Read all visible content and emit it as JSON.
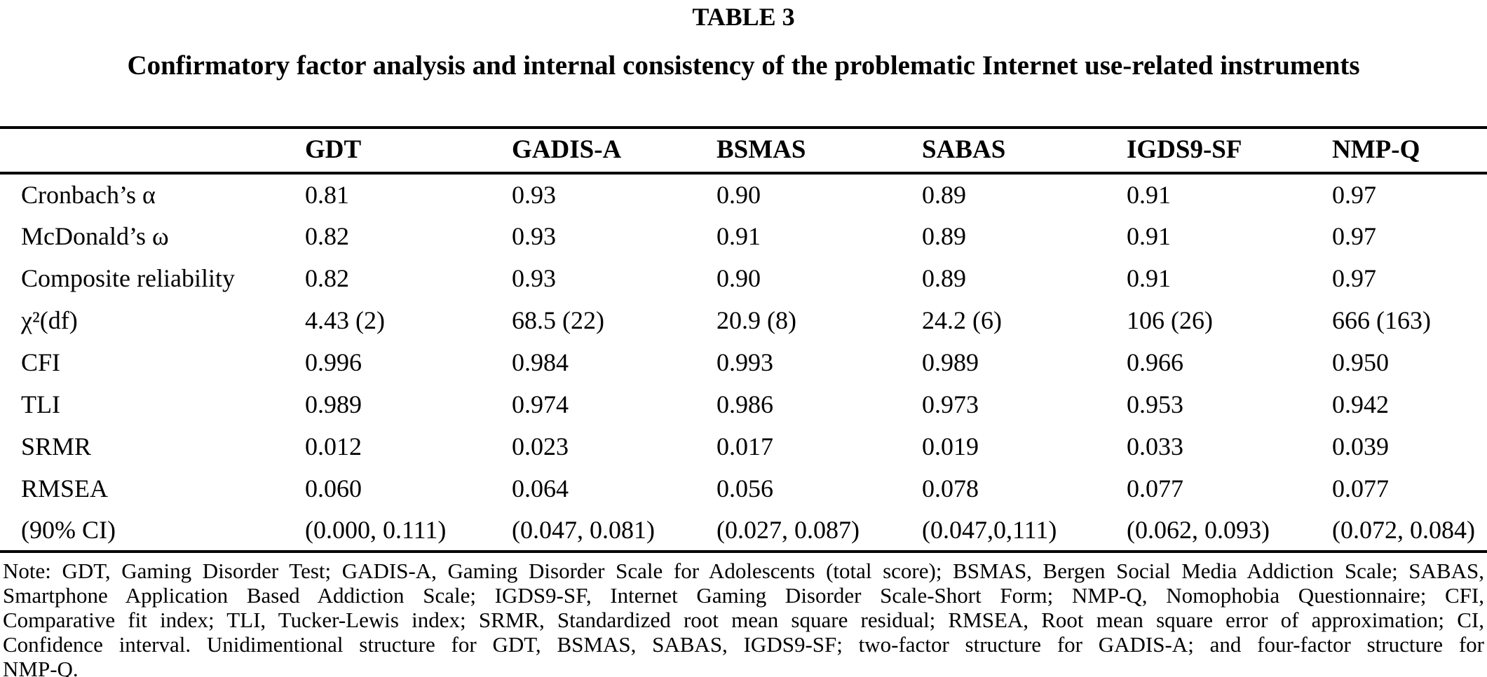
{
  "colors": {
    "text": "#000000",
    "background": "#ffffff",
    "rule": "#000000"
  },
  "table": {
    "number_label": "TABLE 3",
    "title": "Confirmatory factor analysis and internal consistency of the problematic Internet use-related instruments",
    "columns": [
      "GDT",
      "GADIS-A",
      "BSMAS",
      "SABAS",
      "IGDS9-SF",
      "NMP-Q"
    ],
    "rows": [
      {
        "label": "Cronbach’s α",
        "values": [
          "0.81",
          "0.93",
          "0.90",
          "0.89",
          "0.91",
          "0.97"
        ]
      },
      {
        "label": "McDonald’s ω",
        "values": [
          "0.82",
          "0.93",
          "0.91",
          "0.89",
          "0.91",
          "0.97"
        ]
      },
      {
        "label": "Composite reliability",
        "values": [
          "0.82",
          "0.93",
          "0.90",
          "0.89",
          "0.91",
          "0.97"
        ]
      },
      {
        "label": "χ²(df)",
        "values": [
          "4.43 (2)",
          "68.5 (22)",
          "20.9 (8)",
          "24.2 (6)",
          "106 (26)",
          "666 (163)"
        ]
      },
      {
        "label": "CFI",
        "values": [
          "0.996",
          "0.984",
          "0.993",
          "0.989",
          "0.966",
          "0.950"
        ]
      },
      {
        "label": "TLI",
        "values": [
          "0.989",
          "0.974",
          "0.986",
          "0.973",
          "0.953",
          "0.942"
        ]
      },
      {
        "label": "SRMR",
        "values": [
          "0.012",
          "0.023",
          "0.017",
          "0.019",
          "0.033",
          "0.039"
        ]
      },
      {
        "label": "RMSEA",
        "values": [
          "0.060",
          "0.064",
          "0.056",
          "0.078",
          "0.077",
          "0.077"
        ]
      },
      {
        "label": "(90% CI)",
        "values": [
          "(0.000, 0.111)",
          "(0.047, 0.081)",
          "(0.027, 0.087)",
          "(0.047,0,111)",
          "(0.062, 0.093)",
          "(0.072, 0.084)"
        ]
      }
    ]
  },
  "note": {
    "lines": [
      "Note: GDT, Gaming Disorder Test; GADIS-A, Gaming Disorder Scale for Adolescents (total score); BSMAS, Bergen Social Media Addiction Scale; SABAS,",
      "Smartphone Application Based Addiction Scale; IGDS9-SF, Internet Gaming Disorder Scale-Short Form; NMP-Q, Nomophobia Questionnaire; CFI,",
      "Comparative fit index; TLI, Tucker-Lewis index; SRMR, Standardized root mean square residual; RMSEA, Root mean square error of approximation; CI,",
      "Confidence interval. Unidimentional structure for GDT, BSMAS, SABAS, IGDS9-SF; two-factor structure for GADIS-A; and four-factor structure for",
      "NMP-Q."
    ]
  }
}
